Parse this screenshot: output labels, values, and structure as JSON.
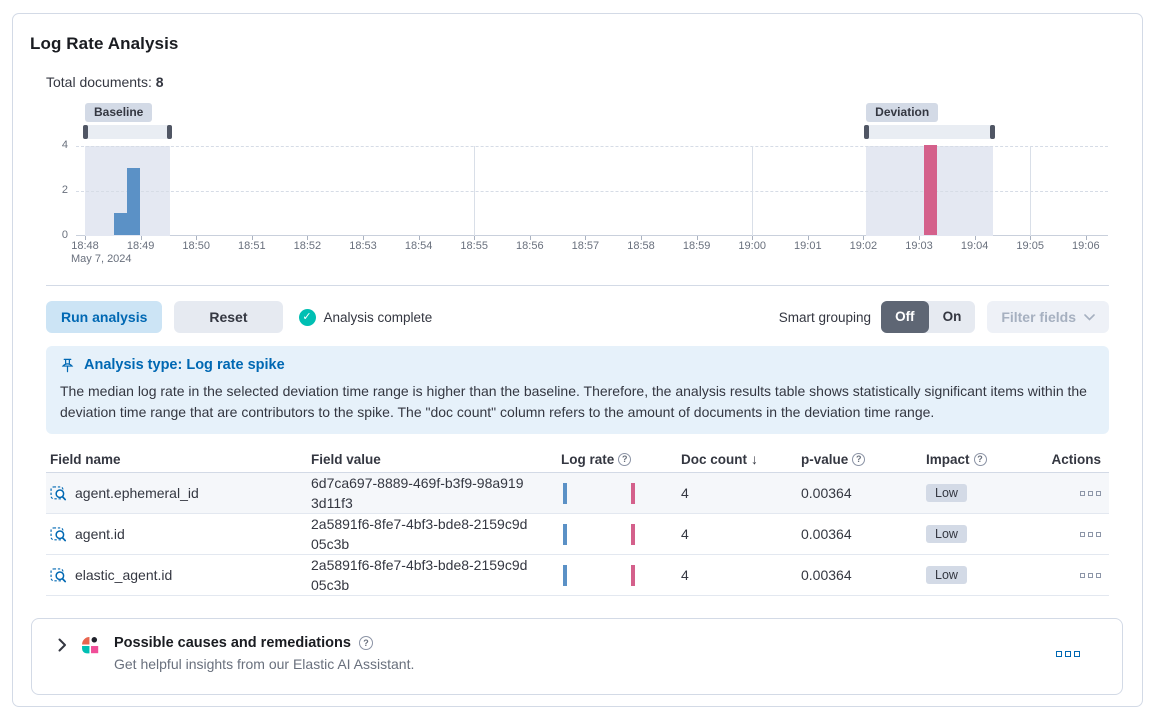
{
  "panel": {
    "title": "Log Rate Analysis",
    "total_documents_label": "Total documents:",
    "total_documents_value": "8"
  },
  "chart_data": {
    "type": "bar",
    "title": "Document count histogram with baseline and deviation selections",
    "x_ticks": [
      "18:48",
      "18:49",
      "18:50",
      "18:51",
      "18:52",
      "18:53",
      "18:54",
      "18:55",
      "18:56",
      "18:57",
      "18:58",
      "18:59",
      "19:00",
      "19:01",
      "19:02",
      "19:03",
      "19:04",
      "19:05",
      "19:06"
    ],
    "x_secondary_label": "May 7, 2024",
    "y_ticks": [
      0,
      2,
      4
    ],
    "ylim": [
      0,
      4
    ],
    "grid": "dashed-horizontal",
    "vertical_gridline_tick_indexes": [
      7,
      12,
      17
    ],
    "series": [
      {
        "name": "Baseline",
        "color": "#5b91c6",
        "bars": [
          {
            "t": 0.63,
            "count": 1
          },
          {
            "t": 0.88,
            "count": 3
          }
        ]
      },
      {
        "name": "Deviation",
        "color": "#d4608b",
        "bars": [
          {
            "t": 15.2,
            "count": 4
          }
        ]
      }
    ],
    "annotations": {
      "baseline": {
        "label": "Baseline",
        "from_t": 0.0,
        "to_t": 1.53
      },
      "deviation": {
        "label": "Deviation",
        "from_t": 14.05,
        "to_t": 16.33
      }
    }
  },
  "controls": {
    "run_button": "Run analysis",
    "reset_button": "Reset",
    "status": "Analysis complete",
    "smart_grouping_label": "Smart grouping",
    "off_label": "Off",
    "on_label": "On",
    "filter_fields_label": "Filter fields"
  },
  "callout": {
    "title": "Analysis type: Log rate spike",
    "body": "The median log rate in the selected deviation time range is higher than the baseline. Therefore, the analysis results table shows statistically significant items within the deviation time range that are contributors to the spike. The \"doc count\" column refers to the amount of documents in the deviation time range."
  },
  "table": {
    "headers": [
      {
        "label": "Field name"
      },
      {
        "label": "Field value"
      },
      {
        "label": "Log rate",
        "info_icon": true
      },
      {
        "label": "Doc count",
        "sort_icon": "desc"
      },
      {
        "label": "p-value",
        "info_icon": true
      },
      {
        "label": "Impact",
        "info_icon": true
      },
      {
        "label": "Actions"
      }
    ],
    "mini_chart": {
      "bars": [
        {
          "key": "baseline",
          "x_frac": 0.02
        },
        {
          "key": "deviation",
          "x_frac": 0.82
        }
      ]
    },
    "rows": [
      {
        "field_name": "agent.ephemeral_id",
        "field_value": "6d7ca697-8889-469f-b3f9-98a9193d11f3",
        "doc_count": "4",
        "p_value": "0.00364",
        "impact": "Low"
      },
      {
        "field_name": "agent.id",
        "field_value": "2a5891f6-8fe7-4bf3-bde8-2159c9d05c3b",
        "doc_count": "4",
        "p_value": "0.00364",
        "impact": "Low"
      },
      {
        "field_name": "elastic_agent.id",
        "field_value": "2a5891f6-8fe7-4bf3-bde8-2159c9d05c3b",
        "doc_count": "4",
        "p_value": "0.00364",
        "impact": "Low"
      }
    ]
  },
  "footer": {
    "title": "Possible causes and remediations",
    "subtitle": "Get helpful insights from our Elastic AI Assistant."
  },
  "colors": {
    "primary_blue": "#0068b3",
    "baseline_bar": "#5b91c6",
    "deviation_bar": "#d4608b",
    "success_teal": "#00bfb3",
    "callout_bg": "#e6f1fa",
    "selection_region_bg": "#e4e8f2",
    "badge_bg": "#d3dae6",
    "toggle_off_bg": "#5e6674"
  }
}
